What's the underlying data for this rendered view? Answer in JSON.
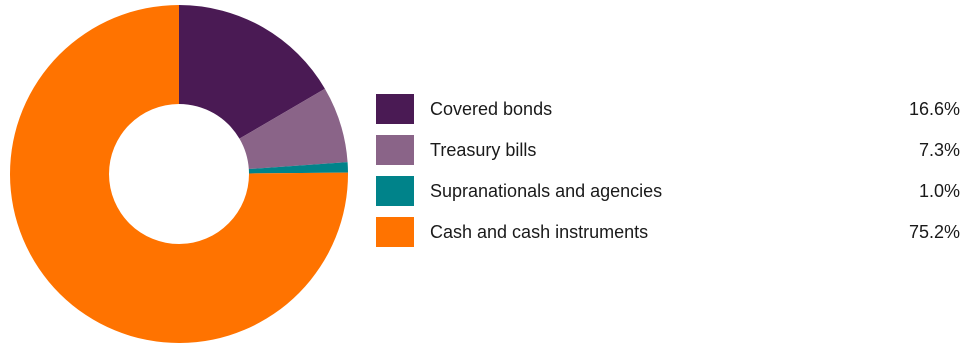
{
  "chart_data": {
    "type": "pie",
    "title": "",
    "categories": [
      "Covered bonds",
      "Treasury bills",
      "Supranationals and agencies",
      "Cash and cash instruments"
    ],
    "values": [
      16.6,
      7.3,
      1.0,
      75.2
    ],
    "value_labels": [
      "16.6%",
      "7.3%",
      "1.0%",
      "75.2%"
    ],
    "unit": "%",
    "colors": [
      "#4a1a54",
      "#8a6488",
      "#00838a",
      "#ff7300"
    ],
    "start_angle_deg": 0,
    "direction": "clockwise",
    "donut": true,
    "legend": "right",
    "legend_entries": [
      {
        "label": "Covered bonds",
        "value": "16.6%",
        "color": "#4a1a54"
      },
      {
        "label": "Treasury bills",
        "value": "7.3%",
        "color": "#8a6488"
      },
      {
        "label": "Supranationals and agencies",
        "value": "1.0%",
        "color": "#00838a"
      },
      {
        "label": "Cash and cash instruments",
        "value": "75.2%",
        "color": "#ff7300"
      }
    ]
  }
}
